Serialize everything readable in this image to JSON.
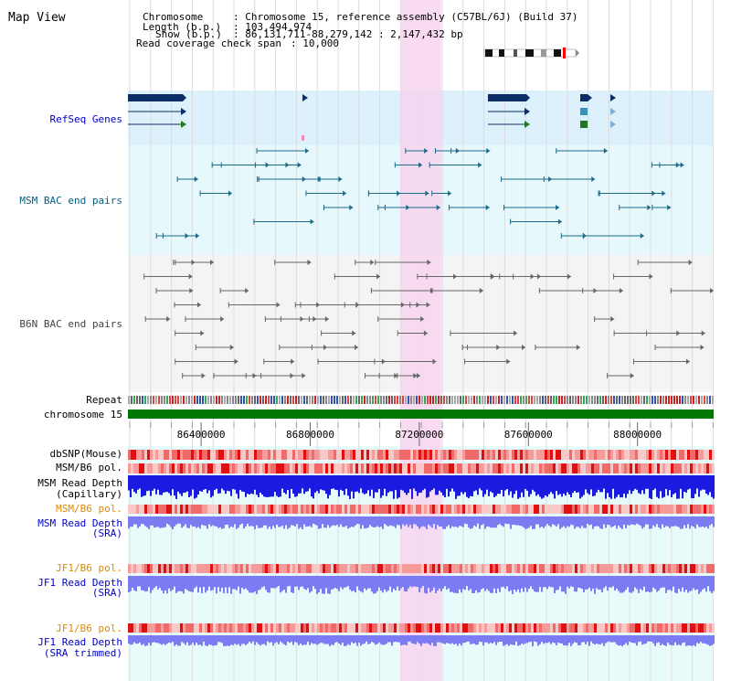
{
  "app": {
    "title": "Map View"
  },
  "info": {
    "chromosome_label": "Chromosome",
    "chromosome_value": ": Chromosome 15, reference assembly (C57BL/6J) (Build 37)",
    "length_label": "Length (b.p.)",
    "length_value": ": 103,494,974",
    "show_label": "Show (b.p.)",
    "show_value": ": 86,131,711-88,279,142 : 2,147,432 bp",
    "coverage_label": "Read coverage check span",
    "coverage_value": ": 10,000"
  },
  "tracks": {
    "refseq": "RefSeq Genes",
    "msm_bac": "MSM BAC end pairs",
    "b6n_bac": "B6N BAC end pairs",
    "repeat": "Repeat",
    "chromosome": "chromosome 15",
    "dbsnp": "dbSNP(Mouse)",
    "msm_b6_pol": "MSM/B6 pol.",
    "msm_depth_cap_1": "MSM Read Depth",
    "msm_depth_cap_2": "(Capillary)",
    "msm_b6_pol_2": "MSM/B6 pol.",
    "msm_depth_sra_1": "MSM Read Depth",
    "msm_depth_sra_2": "(SRA)",
    "jf1_b6_pol": "JF1/B6 pol.",
    "jf1_depth_sra_1": "JF1 Read Depth",
    "jf1_depth_sra_2": "(SRA)",
    "jf1_b6_pol_2": "JF1/B6 pol.",
    "jf1_depth_trim_1": "JF1 Read Depth",
    "jf1_depth_trim_2": "(SRA trimmed)"
  },
  "axis": {
    "start_bp": 86131711,
    "end_bp": 88279142,
    "ticks": [
      86400000,
      86800000,
      87200000,
      87600000,
      88000000
    ],
    "tick_labels": [
      "86400000",
      "86800000",
      "87200000",
      "87600000",
      "88000000"
    ]
  },
  "highlight": {
    "start_bp": 87131000,
    "end_bp": 87280000
  },
  "colors": {
    "refseq_bg": "#dcf1fb",
    "msm_bg": "#e6f8fb",
    "b6n_bg": "#f4f4f4",
    "track_bg": "#e8fbfb",
    "highlight": "#f7d4ef",
    "label_blue": "#0000cc",
    "label_teal": "#006080",
    "label_orange": "#e08a00",
    "chromosome_bar": "#007700",
    "depth_capillary": "#1a1ae0",
    "depth_sra": "#7b7bf2",
    "polymorphism": "#f06a6a"
  }
}
